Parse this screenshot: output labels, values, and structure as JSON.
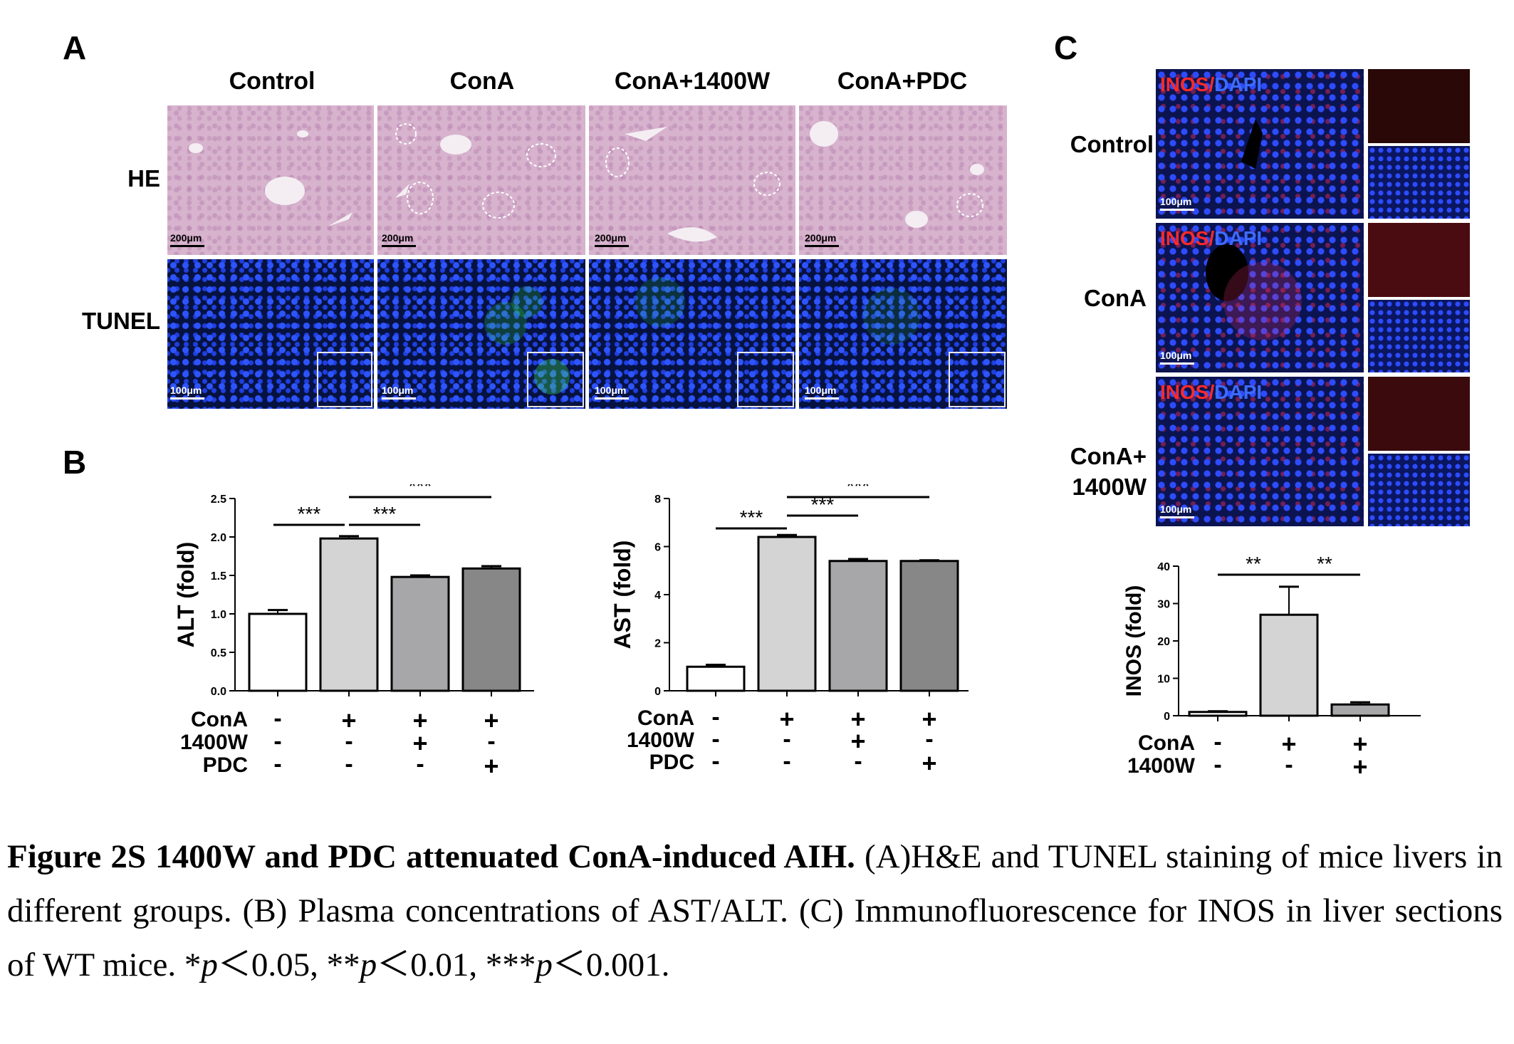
{
  "panelA": {
    "letter": "A",
    "columns": [
      "Control",
      "ConA",
      "ConA+1400W",
      "ConA+PDC"
    ],
    "rows": [
      "HE",
      "TUNEL"
    ],
    "he_scale": "200μm",
    "tunel_scale": "100μm"
  },
  "panelB": {
    "letter": "B",
    "treat_labels": [
      "ConA",
      "1400W",
      "PDC"
    ],
    "signs": {
      "ConA": [
        "-",
        "+",
        "+",
        "+"
      ],
      "1400W": [
        "-",
        "-",
        "+",
        "-"
      ],
      "PDC": [
        "-",
        "-",
        "-",
        "+"
      ]
    },
    "sig": [
      "***",
      "***",
      "***"
    ]
  },
  "panelC": {
    "letter": "C",
    "rows": [
      "Control",
      "ConA",
      "ConA+\n1400W"
    ],
    "row_line1": [
      "Control",
      "ConA",
      "ConA+"
    ],
    "row_line2": [
      "",
      "",
      "1400W"
    ],
    "chan_red": "INOS",
    "chan_sep": "/",
    "chan_blue": "DAPI",
    "scale": "100μm",
    "treat_labels": [
      "ConA",
      "1400W"
    ],
    "signs": {
      "ConA": [
        "-",
        "+",
        "+"
      ],
      "1400W": [
        "-",
        "-",
        "+"
      ]
    },
    "sig": [
      "**",
      "**"
    ]
  },
  "chart_data": [
    {
      "type": "bar",
      "categories": [
        "Control",
        "ConA",
        "ConA+1400W",
        "ConA+PDC"
      ],
      "values": [
        1.0,
        1.98,
        1.48,
        1.59
      ],
      "errors": [
        0.05,
        0.03,
        0.02,
        0.03
      ],
      "ylabel": "ALT (fold)",
      "ylim": [
        0,
        2.5
      ],
      "yticks": [
        "0.0",
        "0.5",
        "1.0",
        "1.5",
        "2.0",
        "2.5"
      ],
      "colors": [
        "#ffffff",
        "#d4d4d4",
        "#a7a7aa",
        "#878788"
      ]
    },
    {
      "type": "bar",
      "categories": [
        "Control",
        "ConA",
        "ConA+1400W",
        "ConA+PDC"
      ],
      "values": [
        1.0,
        6.4,
        5.4,
        5.4
      ],
      "errors": [
        0.08,
        0.08,
        0.08,
        0.03
      ],
      "ylabel": "AST (fold)",
      "ylim": [
        0,
        8
      ],
      "yticks": [
        "0",
        "2",
        "4",
        "6",
        "8"
      ],
      "colors": [
        "#ffffff",
        "#d4d4d4",
        "#a7a7aa",
        "#878788"
      ]
    },
    {
      "type": "bar",
      "categories": [
        "Control",
        "ConA",
        "ConA+1400W"
      ],
      "values": [
        1.0,
        27.0,
        3.0
      ],
      "errors": [
        0.2,
        7.5,
        0.6
      ],
      "ylabel": "INOS (fold)",
      "ylim": [
        0,
        40
      ],
      "yticks": [
        "0",
        "10",
        "20",
        "30",
        "40"
      ],
      "colors": [
        "#ffffff",
        "#d4d4d4",
        "#a7a7aa"
      ]
    }
  ],
  "caption": {
    "bold": "Figure 2S 1400W and PDC attenuated ConA-induced AIH.",
    "text1": " (A)H&E and TUNEL staining of mice livers in different groups. (B) Plasma concentrations of AST/ALT. (C) Immunofluorescence for INOS in liver sections of WT mice. *",
    "p1": "p",
    "text2": "＜0.05, **",
    "p2": "p",
    "text3": "＜0.01, ***",
    "p3": "p",
    "text4": "＜0.001."
  }
}
